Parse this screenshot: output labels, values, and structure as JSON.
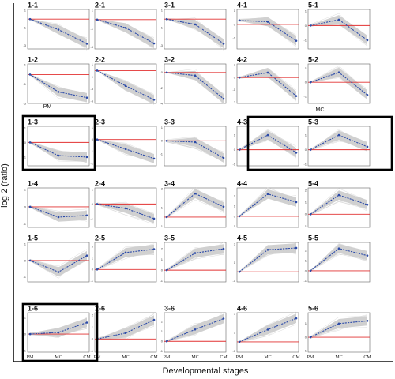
{
  "figure": {
    "ylabel": "log 2 (ratio)",
    "xlabel": "Developmental stages",
    "group_labels": [
      "PM",
      "MC",
      "CM"
    ],
    "stage_labels": [
      "PM",
      "MC",
      "CM"
    ]
  },
  "chart_data": {
    "type": "line",
    "x": [
      "PM",
      "MC",
      "CM"
    ],
    "panels": [
      {
        "id": "1-1",
        "values": [
          0.0,
          -1.2,
          -2.8
        ]
      },
      {
        "id": "2-1",
        "values": [
          0.0,
          -0.9,
          -2.6
        ]
      },
      {
        "id": "3-1",
        "values": [
          0.0,
          -0.6,
          -2.8
        ]
      },
      {
        "id": "4-1",
        "values": [
          0.3,
          0.2,
          -1.2
        ]
      },
      {
        "id": "5-1",
        "values": [
          0.0,
          0.4,
          -1.0
        ]
      },
      {
        "id": "1-2",
        "values": [
          0.0,
          -1.8,
          -2.4
        ]
      },
      {
        "id": "2-2",
        "values": [
          0.0,
          -2.5,
          -4.8
        ]
      },
      {
        "id": "3-2",
        "values": [
          0.0,
          -0.4,
          -3.4
        ]
      },
      {
        "id": "4-2",
        "values": [
          0.0,
          0.4,
          -1.5
        ]
      },
      {
        "id": "5-2",
        "values": [
          0.0,
          0.7,
          -0.9
        ]
      },
      {
        "id": "1-3",
        "values": [
          0.0,
          -0.9,
          -1.0
        ]
      },
      {
        "id": "2-3",
        "values": [
          0.0,
          -0.8,
          -1.6
        ]
      },
      {
        "id": "3-3",
        "values": [
          0.0,
          -0.1,
          -1.3
        ]
      },
      {
        "id": "4-3",
        "values": [
          0.0,
          1.0,
          -0.2
        ]
      },
      {
        "id": "5-3",
        "values": [
          0.0,
          1.0,
          0.2
        ]
      },
      {
        "id": "1-4",
        "values": [
          0.0,
          -0.6,
          -0.5
        ]
      },
      {
        "id": "2-4",
        "values": [
          0.0,
          -0.3,
          -1.0
        ]
      },
      {
        "id": "3-4",
        "values": [
          0.0,
          2.5,
          1.1
        ]
      },
      {
        "id": "4-4",
        "values": [
          0.0,
          2.2,
          1.4
        ]
      },
      {
        "id": "5-4",
        "values": [
          0.0,
          1.6,
          0.8
        ]
      },
      {
        "id": "1-5",
        "values": [
          0.0,
          -0.7,
          0.3
        ]
      },
      {
        "id": "2-5",
        "values": [
          0.0,
          1.5,
          1.8
        ]
      },
      {
        "id": "3-5",
        "values": [
          0.0,
          1.6,
          2.0
        ]
      },
      {
        "id": "4-5",
        "values": [
          0.0,
          2.4,
          2.6
        ]
      },
      {
        "id": "5-5",
        "values": [
          0.0,
          2.2,
          1.5
        ]
      },
      {
        "id": "1-6",
        "values": [
          0.0,
          0.1,
          0.7
        ]
      },
      {
        "id": "2-6",
        "values": [
          0.0,
          0.5,
          1.6
        ]
      },
      {
        "id": "3-6",
        "values": [
          0.0,
          1.2,
          2.3
        ]
      },
      {
        "id": "4-6",
        "values": [
          0.0,
          1.3,
          2.5
        ]
      },
      {
        "id": "5-6",
        "values": [
          0.0,
          1.0,
          1.2
        ]
      }
    ],
    "highlight_panels": [
      "1-3",
      "4-3",
      "5-3",
      "1-6"
    ],
    "colors": {
      "mean": "#2b4aa8",
      "zero_line": "#e23030",
      "band": "#c4c4c4",
      "genes": "#d2d2d2"
    }
  }
}
